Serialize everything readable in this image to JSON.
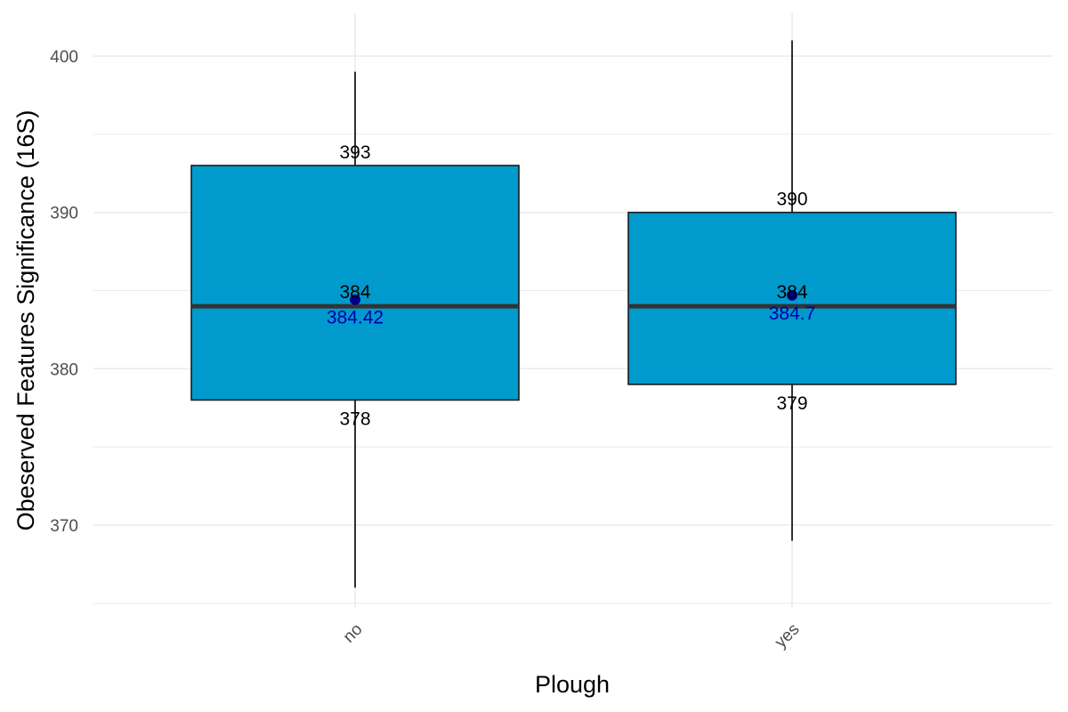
{
  "chart_data": {
    "type": "boxplot",
    "xlabel": "Plough",
    "ylabel": "Obeserved Features Significance (16S)",
    "ylim": [
      365,
      402
    ],
    "y_ticks": [
      370,
      380,
      390,
      400
    ],
    "grid": true,
    "categories": [
      "no",
      "yes"
    ],
    "boxes": [
      {
        "category": "no",
        "min": 366,
        "q1": 378,
        "median": 384,
        "q3": 393,
        "max": 399,
        "mean": 384.42,
        "labels": {
          "q3": "393",
          "median": "384",
          "q1": "378",
          "mean": "384.42"
        }
      },
      {
        "category": "yes",
        "min": 369,
        "q1": 379,
        "median": 384,
        "q3": 390,
        "max": 401,
        "mean": 384.7,
        "labels": {
          "q3": "390",
          "median": "384",
          "q1": "379",
          "mean": "384.7"
        }
      }
    ],
    "colors": {
      "box_fill": "#009ACD",
      "box_stroke": "#1a1a1a",
      "median": "#333333",
      "mean_point": "#00008B",
      "mean_text": "#0000AA",
      "grid": "#EBEBEB"
    }
  }
}
